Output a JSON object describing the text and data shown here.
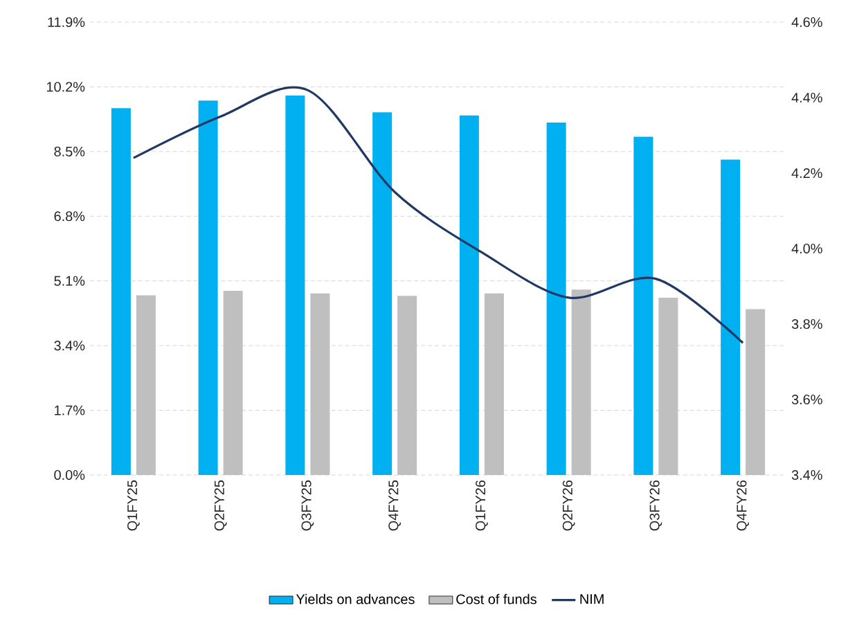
{
  "chart_data": {
    "type": "bar",
    "categories": [
      "Q1FY25",
      "Q2FY25",
      "Q3FY25",
      "Q4FY25",
      "Q1FY26",
      "Q2FY26",
      "Q3FY26",
      "Q4FY26"
    ],
    "series": [
      {
        "name": "Yields on advances",
        "color": "#00b0f0",
        "values": [
          9.64,
          9.84,
          9.97,
          9.53,
          9.45,
          9.26,
          8.89,
          8.29
        ]
      },
      {
        "name": "Cost of funds",
        "color": "#bfbfbf",
        "values": [
          4.72,
          4.84,
          4.77,
          4.71,
          4.77,
          4.87,
          4.66,
          4.36
        ]
      },
      {
        "name": "NIM",
        "type": "line",
        "axis": "y2",
        "color": "#1f3864",
        "values": [
          4.24,
          4.35,
          4.42,
          4.15,
          3.99,
          3.87,
          3.92,
          3.75
        ]
      }
    ],
    "ylim": [
      0,
      11.9
    ],
    "yticks": [
      {
        "value": 0,
        "label": "0.0%"
      },
      {
        "value": 1.7,
        "label": "1.7%"
      },
      {
        "value": 3.4,
        "label": "3.4%"
      },
      {
        "value": 5.1,
        "label": "5.1%"
      },
      {
        "value": 6.8,
        "label": "6.8%"
      },
      {
        "value": 8.5,
        "label": "8.5%"
      },
      {
        "value": 10.2,
        "label": "10.2%"
      },
      {
        "value": 11.9,
        "label": "11.9%"
      }
    ],
    "y2lim": [
      3.4,
      4.6
    ],
    "y2ticks": [
      {
        "value": 3.4,
        "label": "3.4%"
      },
      {
        "value": 3.6,
        "label": "3.6%"
      },
      {
        "value": 3.8,
        "label": "3.8%"
      },
      {
        "value": 4.0,
        "label": "4.0%"
      },
      {
        "value": 4.2,
        "label": "4.2%"
      },
      {
        "value": 4.4,
        "label": "4.4%"
      },
      {
        "value": 4.6,
        "label": "4.6%"
      }
    ],
    "grid": "y",
    "legend": "bottom"
  }
}
